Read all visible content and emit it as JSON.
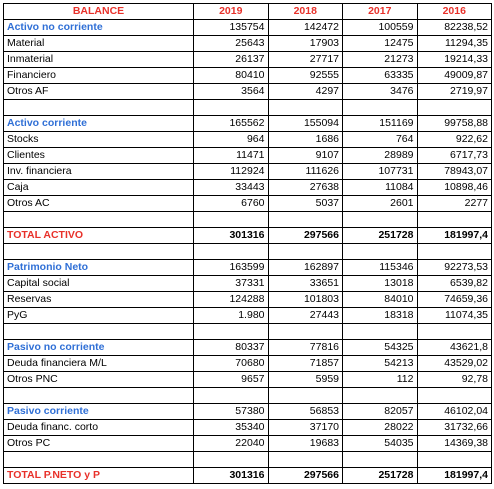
{
  "header": {
    "label": "BALANCE",
    "years": [
      "2019",
      "2018",
      "2017",
      "2016"
    ]
  },
  "sections": [
    {
      "title": "Activo no corriente",
      "values": [
        "135754",
        "142472",
        "100559",
        "82238,52"
      ],
      "rows": [
        {
          "label": "Material",
          "values": [
            "25643",
            "17903",
            "12475",
            "11294,35"
          ]
        },
        {
          "label": "Inmaterial",
          "values": [
            "26137",
            "27717",
            "21273",
            "19214,33"
          ]
        },
        {
          "label": "Financiero",
          "values": [
            "80410",
            "92555",
            "63335",
            "49009,87"
          ]
        },
        {
          "label": "Otros AF",
          "values": [
            "3564",
            "4297",
            "3476",
            "2719,97"
          ]
        }
      ]
    },
    {
      "title": "Activo corriente",
      "values": [
        "165562",
        "155094",
        "151169",
        "99758,88"
      ],
      "rows": [
        {
          "label": "Stocks",
          "values": [
            "964",
            "1686",
            "764",
            "922,62"
          ]
        },
        {
          "label": "Clientes",
          "values": [
            "11471",
            "9107",
            "28989",
            "6717,73"
          ]
        },
        {
          "label": "Inv. financiera",
          "values": [
            "112924",
            "111626",
            "107731",
            "78943,07"
          ]
        },
        {
          "label": "Caja",
          "values": [
            "33443",
            "27638",
            "11084",
            "10898,46"
          ]
        },
        {
          "label": "Otros AC",
          "values": [
            "6760",
            "5037",
            "2601",
            "2277"
          ]
        }
      ]
    },
    {
      "title": "Patrimonio Neto",
      "values": [
        "163599",
        "162897",
        "115346",
        "92273,53"
      ],
      "rows": [
        {
          "label": "Capital social",
          "values": [
            "37331",
            "33651",
            "13018",
            "6539,82"
          ]
        },
        {
          "label": "Reservas",
          "values": [
            "124288",
            "101803",
            "84010",
            "74659,36"
          ]
        },
        {
          "label": "PyG",
          "values": [
            "1.980",
            "27443",
            "18318",
            "11074,35"
          ]
        }
      ]
    },
    {
      "title": "Pasivo no corriente",
      "values": [
        "80337",
        "77816",
        "54325",
        "43621,8"
      ],
      "rows": [
        {
          "label": "Deuda financiera M/L",
          "values": [
            "70680",
            "71857",
            "54213",
            "43529,02"
          ]
        },
        {
          "label": "Otros PNC",
          "values": [
            "9657",
            "5959",
            "112",
            "92,78"
          ]
        }
      ]
    },
    {
      "title": "Pasivo corriente",
      "values": [
        "57380",
        "56853",
        "82057",
        "46102,04"
      ],
      "rows": [
        {
          "label": "Deuda financ. corto",
          "values": [
            "35340",
            "37170",
            "28022",
            "31732,66"
          ]
        },
        {
          "label": "Otros PC",
          "values": [
            "22040",
            "19683",
            "54035",
            "14369,38"
          ]
        }
      ]
    }
  ],
  "totals": {
    "activo": {
      "label": "TOTAL ACTIVO",
      "values": [
        "301316",
        "297566",
        "251728",
        "181997,4"
      ]
    },
    "pasivo": {
      "label": "TOTAL P.NETO y P",
      "values": [
        "301316",
        "297566",
        "251728",
        "181997,4"
      ]
    }
  }
}
